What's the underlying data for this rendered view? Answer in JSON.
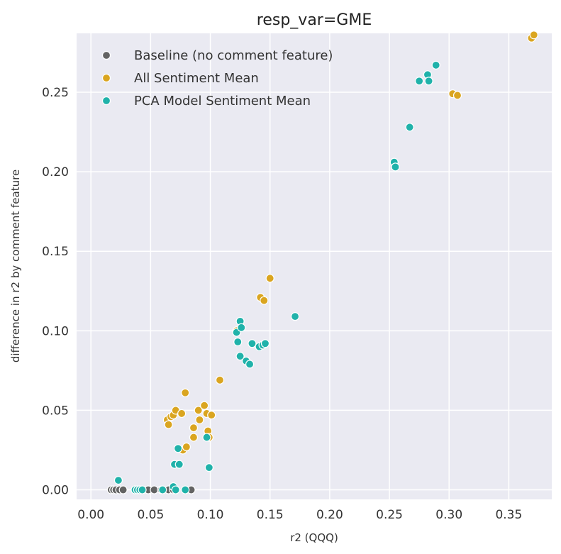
{
  "chart_data": {
    "type": "scatter",
    "title": "resp_var=GME",
    "xlabel": "r2 (QQQ)",
    "ylabel": "difference in r2 by comment feature",
    "xlim": [
      -0.012,
      0.386
    ],
    "ylim": [
      -0.006,
      0.287
    ],
    "xticks": [
      0.0,
      0.05,
      0.1,
      0.15,
      0.2,
      0.25,
      0.3,
      0.35
    ],
    "xtick_labels": [
      "0.00",
      "0.05",
      "0.10",
      "0.15",
      "0.20",
      "0.25",
      "0.30",
      "0.35"
    ],
    "yticks": [
      0.0,
      0.05,
      0.1,
      0.15,
      0.2,
      0.25
    ],
    "ytick_labels": [
      "0.00",
      "0.05",
      "0.10",
      "0.15",
      "0.20",
      "0.25"
    ],
    "grid": true,
    "background": "#eaeaf2",
    "legend_position": "top-left",
    "series": [
      {
        "name": "Baseline (no comment feature)",
        "color": "#636363",
        "points": [
          [
            0.017,
            0.0
          ],
          [
            0.019,
            0.0
          ],
          [
            0.021,
            0.0
          ],
          [
            0.024,
            0.0
          ],
          [
            0.027,
            0.0
          ],
          [
            0.037,
            0.0
          ],
          [
            0.042,
            0.0
          ],
          [
            0.048,
            0.0
          ],
          [
            0.053,
            0.0
          ],
          [
            0.059,
            0.0
          ],
          [
            0.065,
            0.0
          ],
          [
            0.069,
            0.0
          ],
          [
            0.071,
            0.0
          ],
          [
            0.084,
            0.0
          ]
        ]
      },
      {
        "name": "All Sentiment Mean",
        "color": "#daa520",
        "points": [
          [
            0.064,
            0.044
          ],
          [
            0.065,
            0.041
          ],
          [
            0.067,
            0.046
          ],
          [
            0.069,
            0.047
          ],
          [
            0.071,
            0.05
          ],
          [
            0.076,
            0.048
          ],
          [
            0.077,
            0.025
          ],
          [
            0.079,
            0.061
          ],
          [
            0.08,
            0.027
          ],
          [
            0.086,
            0.033
          ],
          [
            0.086,
            0.039
          ],
          [
            0.09,
            0.05
          ],
          [
            0.091,
            0.044
          ],
          [
            0.095,
            0.053
          ],
          [
            0.097,
            0.048
          ],
          [
            0.098,
            0.037
          ],
          [
            0.099,
            0.033
          ],
          [
            0.101,
            0.047
          ],
          [
            0.108,
            0.069
          ],
          [
            0.122,
            0.1
          ],
          [
            0.142,
            0.121
          ],
          [
            0.145,
            0.119
          ],
          [
            0.15,
            0.133
          ],
          [
            0.303,
            0.249
          ],
          [
            0.307,
            0.248
          ],
          [
            0.369,
            0.284
          ],
          [
            0.371,
            0.286
          ]
        ]
      },
      {
        "name": "PCA Model Sentiment Mean",
        "color": "#20b2aa",
        "points": [
          [
            0.023,
            0.006
          ],
          [
            0.037,
            0.0
          ],
          [
            0.039,
            0.0
          ],
          [
            0.041,
            0.0
          ],
          [
            0.043,
            0.0
          ],
          [
            0.06,
            0.0
          ],
          [
            0.069,
            0.002
          ],
          [
            0.071,
            0.0
          ],
          [
            0.07,
            0.016
          ],
          [
            0.073,
            0.026
          ],
          [
            0.074,
            0.016
          ],
          [
            0.079,
            0.0
          ],
          [
            0.097,
            0.033
          ],
          [
            0.099,
            0.014
          ],
          [
            0.122,
            0.099
          ],
          [
            0.123,
            0.093
          ],
          [
            0.125,
            0.106
          ],
          [
            0.126,
            0.102
          ],
          [
            0.125,
            0.084
          ],
          [
            0.13,
            0.081
          ],
          [
            0.133,
            0.079
          ],
          [
            0.135,
            0.092
          ],
          [
            0.141,
            0.09
          ],
          [
            0.144,
            0.091
          ],
          [
            0.146,
            0.092
          ],
          [
            0.171,
            0.109
          ],
          [
            0.254,
            0.206
          ],
          [
            0.255,
            0.203
          ],
          [
            0.267,
            0.228
          ],
          [
            0.275,
            0.257
          ],
          [
            0.282,
            0.261
          ],
          [
            0.283,
            0.257
          ],
          [
            0.289,
            0.267
          ]
        ]
      }
    ]
  }
}
